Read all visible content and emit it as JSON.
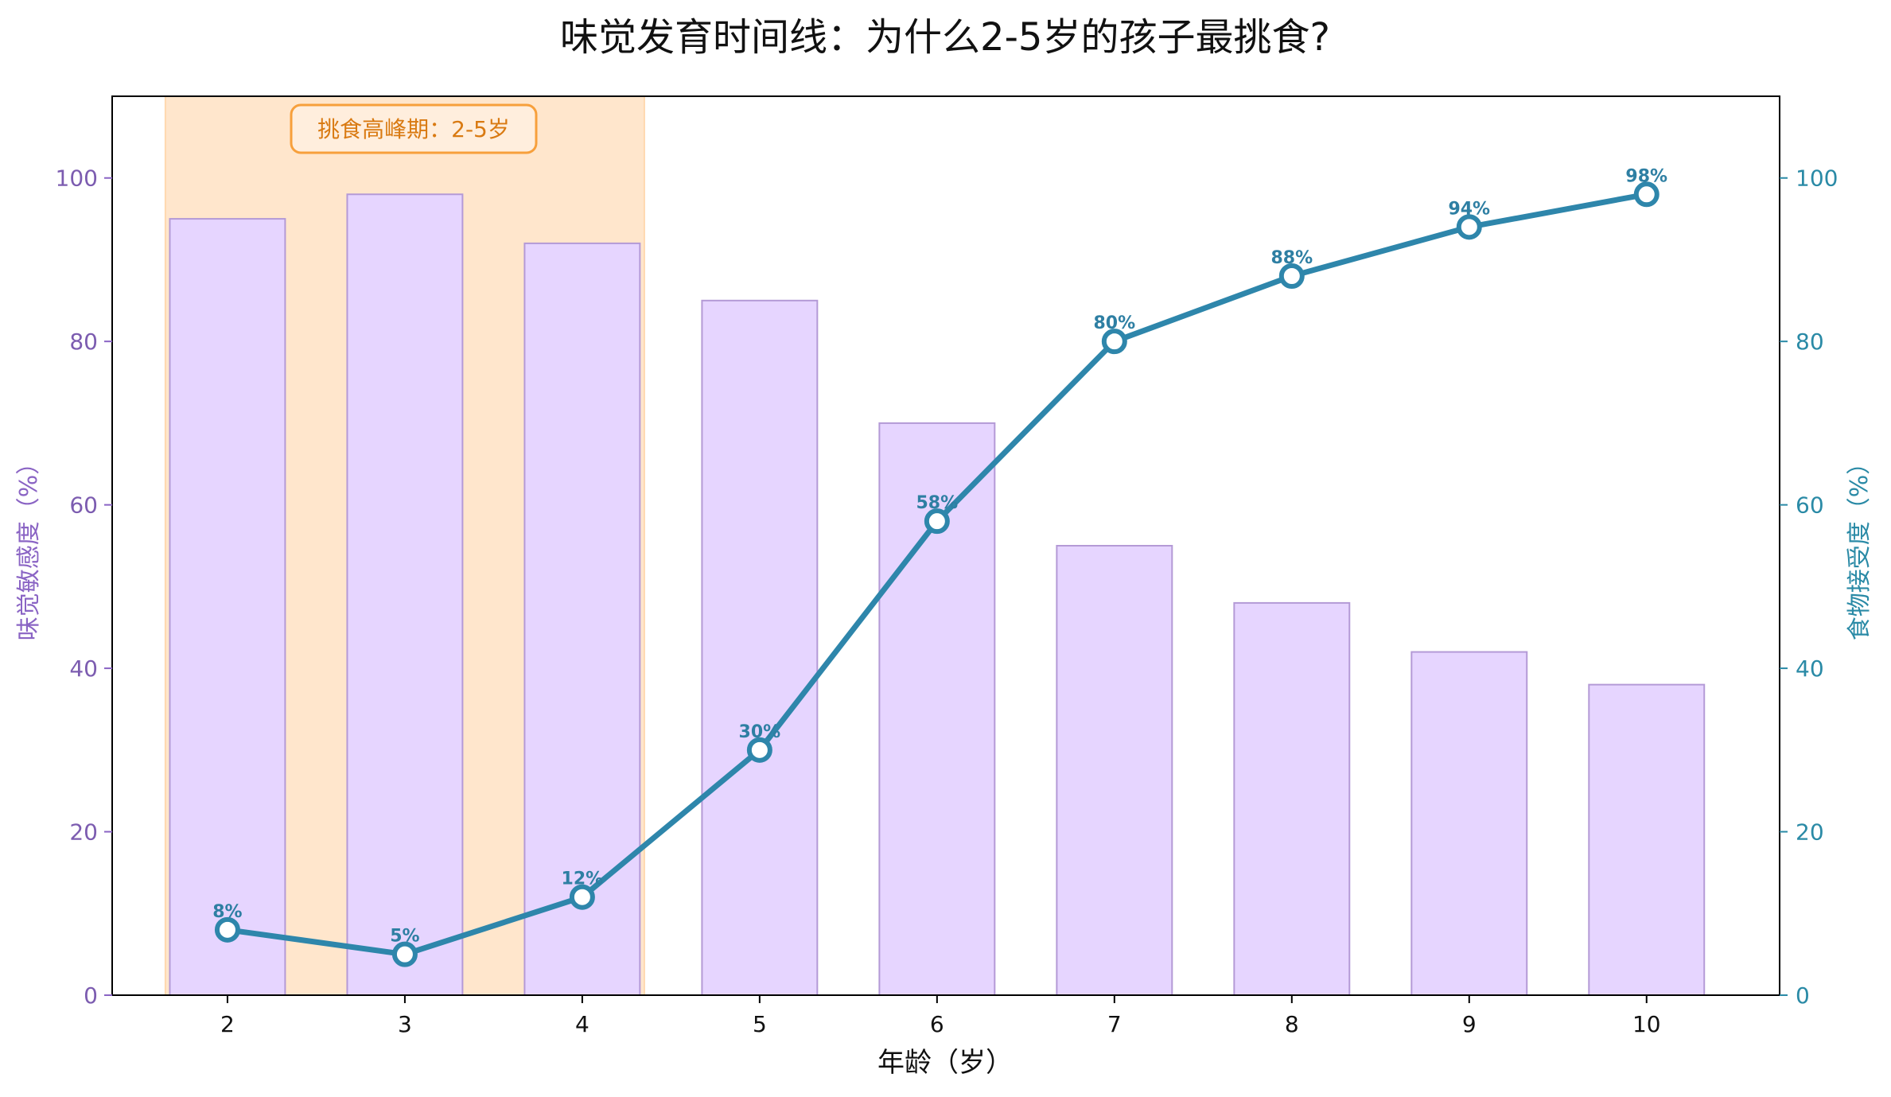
{
  "chart_data": {
    "type": "bar",
    "title": "味觉发育时间线：为什么2-5岁的孩子最挑食?",
    "xlabel": "年龄（岁）",
    "ylabel_left": "味觉敏感度（%）",
    "ylabel_right": "食物接受度（%）",
    "categories": [
      "2",
      "3",
      "4",
      "5",
      "6",
      "7",
      "8",
      "9",
      "10"
    ],
    "x": [
      2,
      3,
      4,
      5,
      6,
      7,
      8,
      9,
      10
    ],
    "ylim": [
      0,
      110
    ],
    "yticks": [
      "0",
      "20",
      "40",
      "60",
      "80",
      "100"
    ],
    "ytick_values": [
      0,
      20,
      40,
      60,
      80,
      100
    ],
    "series": [
      {
        "type": "bar",
        "axis": "left",
        "values": [
          95,
          98,
          92,
          85,
          70,
          55,
          48,
          42,
          38
        ],
        "color": "#e6d5ff",
        "edge_color": "#b49ad6"
      },
      {
        "type": "line",
        "axis": "right",
        "values": [
          8,
          5,
          12,
          30,
          58,
          80,
          88,
          94,
          98
        ],
        "labels": [
          "8%",
          "5%",
          "12%",
          "30%",
          "58%",
          "80%",
          "88%",
          "94%",
          "98%"
        ],
        "color": "#2e86ab"
      }
    ],
    "highlight": {
      "x_range": [
        1.65,
        4.35
      ],
      "color": "#ffe6cc",
      "label": "挑食高峰期：2-5岁",
      "label_color": "#d97a12",
      "label_border": "#f7a03c"
    },
    "colors": {
      "left_axis": "#8a64c4",
      "right_axis": "#2a8aa6"
    },
    "grid": false,
    "legend": "none"
  }
}
